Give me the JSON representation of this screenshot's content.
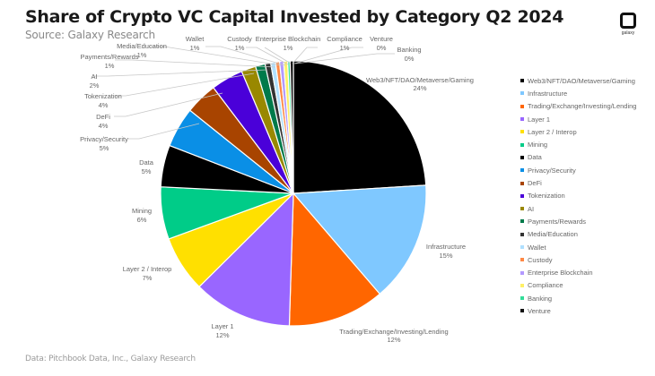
{
  "header": {
    "title": "Share of Crypto VC Capital Invested by Category Q2 2024",
    "subtitle": "Source: Galaxy Research"
  },
  "footer": {
    "source": "Data: Pitchbook Data, Inc., Galaxy Research"
  },
  "logo": {
    "text": "galaxy"
  },
  "chart_data": {
    "type": "pie",
    "title": "Share of Crypto VC Capital Invested by Category Q2 2024",
    "subtitle": "Source: Galaxy Research",
    "legend_position": "right",
    "categories": [
      "Web3/NFT/DAO/Metaverse/Gaming",
      "Infrastructure",
      "Trading/Exchange/Investing/Lending",
      "Layer 1",
      "Layer 2 / Interop",
      "Mining",
      "Data",
      "Privacy/Security",
      "DeFi",
      "Tokenization",
      "AI",
      "Payments/Rewards",
      "Media/Education",
      "Wallet",
      "Custody",
      "Enterprise Blockchain",
      "Compliance",
      "Banking",
      "Venture"
    ],
    "values": [
      24,
      15,
      12,
      12,
      7,
      6,
      5,
      5,
      4,
      4,
      2,
      1,
      1,
      1,
      1,
      1,
      1,
      0,
      0
    ],
    "value_labels": [
      "24%",
      "15%",
      "12%",
      "12%",
      "7%",
      "6%",
      "5%",
      "5%",
      "4%",
      "4%",
      "2%",
      "1%",
      "1%",
      "1%",
      "1%",
      "1%",
      "1%",
      "0%",
      "0%"
    ],
    "colors": [
      "#000000",
      "#7fc8ff",
      "#ff6600",
      "#9966ff",
      "#ffe000",
      "#00cc88",
      "#000000",
      "#0a8fe6",
      "#a84400",
      "#4a00d9",
      "#998800",
      "#007a4a",
      "#333333",
      "#b0e0ff",
      "#ff8844",
      "#b399ff",
      "#fff066",
      "#33dd99",
      "#111111"
    ]
  },
  "legend": [
    {
      "label": "Web3/NFT/DAO/Metaverse/Gaming",
      "color": "#000000"
    },
    {
      "label": "Infrastructure",
      "color": "#7fc8ff"
    },
    {
      "label": "Trading/Exchange/Investing/Lending",
      "color": "#ff6600"
    },
    {
      "label": "Layer 1",
      "color": "#9966ff"
    },
    {
      "label": "Layer 2 / Interop",
      "color": "#ffe000"
    },
    {
      "label": "Mining",
      "color": "#00cc88"
    },
    {
      "label": "Data",
      "color": "#000000"
    },
    {
      "label": "Privacy/Security",
      "color": "#0a8fe6"
    },
    {
      "label": "DeFi",
      "color": "#a84400"
    },
    {
      "label": "Tokenization",
      "color": "#4a00d9"
    },
    {
      "label": "AI",
      "color": "#998800"
    },
    {
      "label": "Payments/Rewards",
      "color": "#007a4a"
    },
    {
      "label": "Media/Education",
      "color": "#333333"
    },
    {
      "label": "Wallet",
      "color": "#b0e0ff"
    },
    {
      "label": "Custody",
      "color": "#ff8844"
    },
    {
      "label": "Enterprise Blockchain",
      "color": "#b399ff"
    },
    {
      "label": "Compliance",
      "color": "#fff066"
    },
    {
      "label": "Banking",
      "color": "#33dd99"
    },
    {
      "label": "Venture",
      "color": "#111111"
    }
  ],
  "slice_labels": [
    {
      "name": "Web3/NFT/DAO/Metaverse/Gaming",
      "pct": "24%"
    },
    {
      "name": "Infrastructure",
      "pct": "15%"
    },
    {
      "name": "Trading/Exchange/Investing/Lending",
      "pct": "12%"
    },
    {
      "name": "Layer 1",
      "pct": "12%"
    },
    {
      "name": "Layer 2 / Interop",
      "pct": "7%"
    },
    {
      "name": "Mining",
      "pct": "6%"
    },
    {
      "name": "Data",
      "pct": "5%"
    },
    {
      "name": "Privacy/Security",
      "pct": "5%"
    },
    {
      "name": "DeFi",
      "pct": "4%"
    },
    {
      "name": "Tokenization",
      "pct": "4%"
    },
    {
      "name": "AI",
      "pct": "2%"
    },
    {
      "name": "Payments/Rewards",
      "pct": "1%"
    },
    {
      "name": "Media/Education",
      "pct": "1%"
    },
    {
      "name": "Wallet",
      "pct": "1%"
    },
    {
      "name": "Custody",
      "pct": "1%"
    },
    {
      "name": "Enterprise Blockchain",
      "pct": "1%"
    },
    {
      "name": "Compliance",
      "pct": "1%"
    },
    {
      "name": "Venture",
      "pct": "0%"
    },
    {
      "name": "Banking",
      "pct": "0%"
    }
  ]
}
